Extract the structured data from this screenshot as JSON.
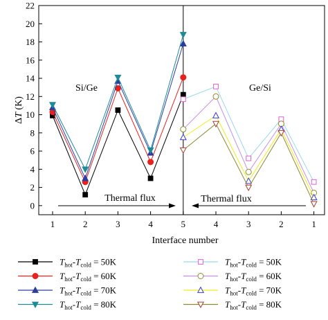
{
  "chart_data": {
    "type": "line",
    "xlabel": "Interface number",
    "ylabel_symbol": "ΔT",
    "ylabel_unit": "(K)",
    "ylim": [
      -1,
      22
    ],
    "yticks": [
      0,
      2,
      4,
      6,
      8,
      10,
      12,
      14,
      16,
      18,
      20,
      22
    ],
    "xtick_labels": [
      "1",
      "2",
      "3",
      "4",
      "5",
      "4",
      "3",
      "2",
      "1"
    ],
    "grid": false,
    "legend_position": "bottom",
    "region_labels": [
      "Si/Ge",
      "Ge/Si"
    ],
    "flux_label_left": "Thermal flux",
    "flux_label_right": "Thermal flux",
    "legend_text": {
      "prefix": "T",
      "hot": "hot",
      "dash": "-",
      "cold": "cold"
    },
    "series": [
      {
        "name": "50K",
        "group": "Si/Ge",
        "color": "#000000",
        "marker": "square",
        "filled": true,
        "x": [
          1,
          2,
          3,
          4,
          5
        ],
        "values": [
          9.9,
          1.2,
          10.5,
          3.0,
          12.2
        ]
      },
      {
        "name": "60K",
        "group": "Si/Ge",
        "color": "#e8211d",
        "marker": "circle",
        "filled": true,
        "x": [
          1,
          2,
          3,
          4,
          5
        ],
        "values": [
          10.3,
          2.6,
          12.9,
          4.8,
          14.1
        ]
      },
      {
        "name": "70K",
        "group": "Si/Ge",
        "color": "#2a3d9f",
        "marker": "triangle-up",
        "filled": true,
        "x": [
          1,
          2,
          3,
          4,
          5
        ],
        "values": [
          10.8,
          3.0,
          13.7,
          5.8,
          17.8
        ]
      },
      {
        "name": "80K",
        "group": "Si/Ge",
        "color": "#1f8a96",
        "marker": "triangle-down",
        "filled": true,
        "x": [
          1,
          2,
          3,
          4,
          5
        ],
        "values": [
          11.1,
          4.0,
          14.1,
          6.1,
          18.8
        ]
      },
      {
        "name": "50K",
        "group": "Ge/Si",
        "color": "#de5fd6",
        "marker": "square",
        "filled": false,
        "x": [
          5,
          6,
          7,
          8,
          9
        ],
        "values": [
          11.7,
          13.1,
          5.2,
          9.5,
          2.6
        ]
      },
      {
        "name": "60K",
        "group": "Ge/Si",
        "color": "#8c8c2a",
        "marker": "circle",
        "filled": false,
        "x": [
          5,
          6,
          7,
          8,
          9
        ],
        "values": [
          8.4,
          12.0,
          3.7,
          9.0,
          1.4
        ]
      },
      {
        "name": "70K",
        "group": "Ge/Si",
        "color": "#3a3ad6",
        "marker": "triangle-up",
        "filled": false,
        "x": [
          5,
          6,
          7,
          8,
          9
        ],
        "values": [
          7.5,
          9.9,
          2.7,
          8.4,
          0.9
        ]
      },
      {
        "name": "80K",
        "group": "Ge/Si",
        "color": "#a3412f",
        "marker": "triangle-down",
        "filled": false,
        "x": [
          5,
          6,
          7,
          8,
          9
        ],
        "values": [
          6.1,
          9.0,
          2.0,
          8.0,
          0.2
        ]
      }
    ],
    "line_colors": {
      "Ge/Si 50K": "#9ad8ea",
      "Ge/Si 60K": "#c48fe6",
      "Ge/Si 70K": "#f2ea1c",
      "Ge/Si 80K": "#8a8a33"
    }
  }
}
